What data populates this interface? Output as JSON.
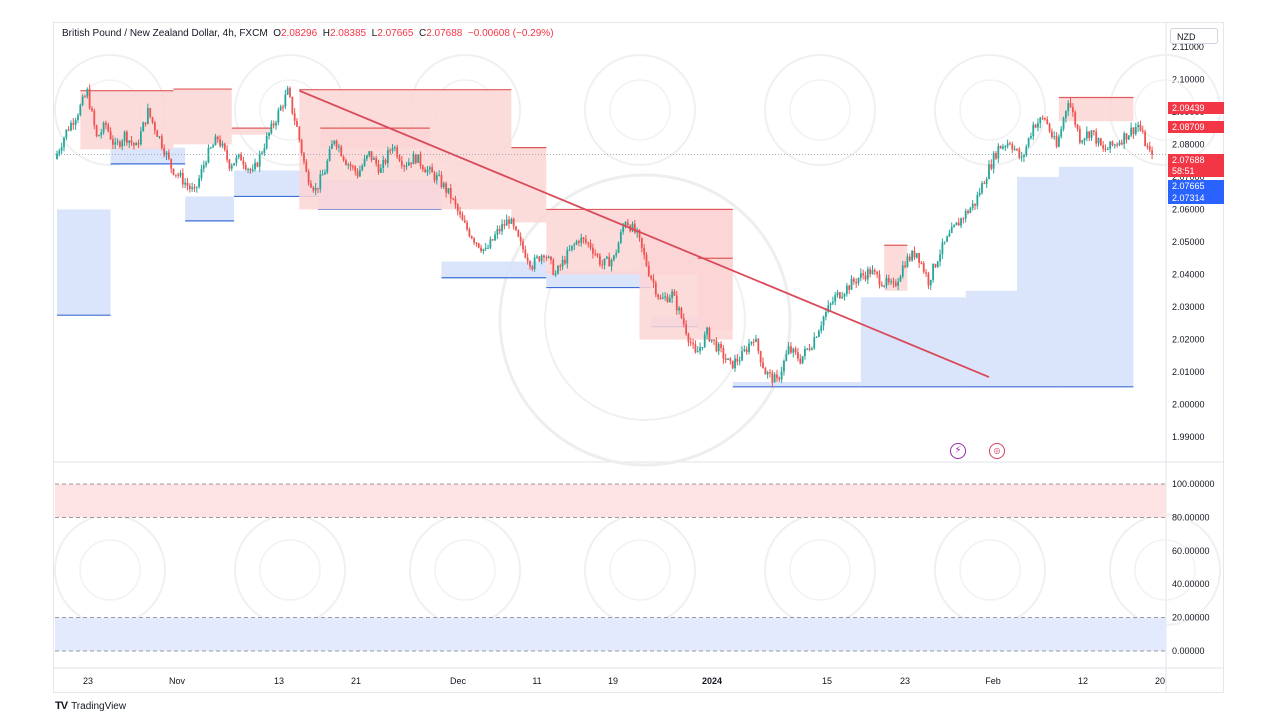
{
  "header": {
    "symbol": "British Pound / New Zealand Dollar, 4h, FXCM",
    "o_label": "O",
    "o_value": "2.08296",
    "h_label": "H",
    "h_value": "2.08385",
    "l_label": "L",
    "l_value": "2.07665",
    "c_label": "C",
    "c_value": "2.07688",
    "change": "−0.00608 (−0.29%)"
  },
  "currency": "NZD",
  "price_tags": [
    {
      "text": "2.09439",
      "color": "#f23645",
      "price": 2.09439
    },
    {
      "text": "2.08709",
      "color": "#f23645",
      "price": 2.08709
    },
    {
      "text": "2.07688",
      "color": "#f23645",
      "price": 2.07688
    },
    {
      "text": "58:51",
      "color": "#f23645",
      "price": 2.0733
    },
    {
      "text": "2.07665",
      "color": "#2962ff",
      "price": 2.07665
    },
    {
      "text": "2.07314",
      "color": "#2962ff",
      "price": 2.07314
    }
  ],
  "colors": {
    "up": "#26a69a",
    "down": "#ef5350",
    "supply_fill": "#fbd5d5",
    "supply_line": "#e05a5a",
    "demand_fill": "#d4e0fb",
    "demand_line": "#3d6fd9",
    "trendline": "#d84a5a",
    "grid": "#f0f3fa",
    "zone_top": "#fde3e3",
    "zone_bottom": "#e3eafd"
  },
  "footer": {
    "brand": "TradingView"
  },
  "chart_data": [
    {
      "type": "candlestick",
      "title": "British Pound / New Zealand Dollar, 4h, FXCM",
      "ylim": [
        1.983,
        2.113
      ],
      "y_ticks": [
        "2.11000",
        "2.10000",
        "2.09000",
        "2.08000",
        "2.07000",
        "2.06000",
        "2.05000",
        "2.04000",
        "2.03000",
        "2.02000",
        "2.01000",
        "2.00000",
        "1.99000"
      ],
      "x_ticks": [
        "23",
        "Nov",
        "13",
        "21",
        "Dec",
        "11",
        "19",
        "2024",
        "15",
        "23",
        "Feb",
        "12",
        "20"
      ],
      "price_path": [
        [
          0,
          2.0755
        ],
        [
          5,
          2.084
        ],
        [
          10,
          2.09
        ],
        [
          14,
          2.096
        ],
        [
          18,
          2.082
        ],
        [
          22,
          2.086
        ],
        [
          26,
          2.079
        ],
        [
          30,
          2.083
        ],
        [
          35,
          2.079
        ],
        [
          40,
          2.09
        ],
        [
          45,
          2.082
        ],
        [
          50,
          2.073
        ],
        [
          55,
          2.069
        ],
        [
          60,
          2.065
        ],
        [
          65,
          2.076
        ],
        [
          70,
          2.082
        ],
        [
          75,
          2.074
        ],
        [
          80,
          2.076
        ],
        [
          85,
          2.071
        ],
        [
          90,
          2.08
        ],
        [
          95,
          2.088
        ],
        [
          100,
          2.096
        ],
        [
          104,
          2.085
        ],
        [
          108,
          2.071
        ],
        [
          112,
          2.066
        ],
        [
          116,
          2.072
        ],
        [
          120,
          2.082
        ],
        [
          125,
          2.075
        ],
        [
          130,
          2.071
        ],
        [
          135,
          2.077
        ],
        [
          140,
          2.072
        ],
        [
          145,
          2.08
        ],
        [
          150,
          2.074
        ],
        [
          155,
          2.076
        ],
        [
          160,
          2.072
        ],
        [
          165,
          2.069
        ],
        [
          170,
          2.064
        ],
        [
          175,
          2.056
        ],
        [
          180,
          2.051
        ],
        [
          185,
          2.047
        ],
        [
          190,
          2.053
        ],
        [
          195,
          2.057
        ],
        [
          200,
          2.049
        ],
        [
          205,
          2.043
        ],
        [
          210,
          2.047
        ],
        [
          215,
          2.04
        ],
        [
          220,
          2.046
        ],
        [
          225,
          2.051
        ],
        [
          230,
          2.049
        ],
        [
          235,
          2.043
        ],
        [
          240,
          2.045
        ],
        [
          245,
          2.057
        ],
        [
          250,
          2.052
        ],
        [
          255,
          2.041
        ],
        [
          260,
          2.032
        ],
        [
          265,
          2.034
        ],
        [
          270,
          2.025
        ],
        [
          275,
          2.015
        ],
        [
          280,
          2.022
        ],
        [
          285,
          2.017
        ],
        [
          290,
          2.012
        ],
        [
          295,
          2.015
        ],
        [
          300,
          2.021
        ],
        [
          305,
          2.01
        ],
        [
          310,
          2.007
        ],
        [
          315,
          2.017
        ],
        [
          320,
          2.014
        ],
        [
          325,
          2.019
        ],
        [
          330,
          2.027
        ],
        [
          335,
          2.033
        ],
        [
          340,
          2.036
        ],
        [
          345,
          2.039
        ],
        [
          350,
          2.041
        ],
        [
          355,
          2.038
        ],
        [
          360,
          2.036
        ],
        [
          365,
          2.044
        ],
        [
          370,
          2.047
        ],
        [
          375,
          2.038
        ],
        [
          380,
          2.047
        ],
        [
          385,
          2.053
        ],
        [
          390,
          2.058
        ],
        [
          395,
          2.062
        ],
        [
          400,
          2.071
        ],
        [
          405,
          2.079
        ],
        [
          410,
          2.081
        ],
        [
          415,
          2.075
        ],
        [
          420,
          2.086
        ],
        [
          425,
          2.088
        ],
        [
          430,
          2.079
        ],
        [
          435,
          2.094
        ],
        [
          440,
          2.082
        ],
        [
          445,
          2.084
        ],
        [
          450,
          2.078
        ],
        [
          455,
          2.08
        ],
        [
          460,
          2.083
        ],
        [
          465,
          2.086
        ],
        [
          470,
          2.0769
        ]
      ],
      "trendline": {
        "from": [
          104,
          2.0965
        ],
        "to": [
          400,
          2.0085
        ]
      },
      "supply_zones": [
        {
          "x0": 10,
          "x1": 50,
          "low": 2.0785,
          "high": 2.0965
        },
        {
          "x0": 50,
          "x1": 75,
          "low": 2.08,
          "high": 2.097
        },
        {
          "x0": 75,
          "x1": 92,
          "low": 2.083,
          "high": 2.085
        },
        {
          "x0": 104,
          "x1": 195,
          "low": 2.06,
          "high": 2.0968
        },
        {
          "x0": 113,
          "x1": 160,
          "low": 2.079,
          "high": 2.085
        },
        {
          "x0": 195,
          "x1": 210,
          "low": 2.056,
          "high": 2.079
        },
        {
          "x0": 210,
          "x1": 290,
          "low": 2.04,
          "high": 2.06
        },
        {
          "x0": 250,
          "x1": 290,
          "low": 2.02,
          "high": 2.06
        },
        {
          "x0": 275,
          "x1": 290,
          "low": 2.023,
          "high": 2.045
        },
        {
          "x0": 355,
          "x1": 365,
          "low": 2.035,
          "high": 2.049
        },
        {
          "x0": 430,
          "x1": 462,
          "low": 2.0871,
          "high": 2.0944
        }
      ],
      "demand_zones": [
        {
          "x0": 0,
          "x1": 23,
          "low": 2.0275,
          "high": 2.06
        },
        {
          "x0": 23,
          "x1": 55,
          "low": 2.074,
          "high": 2.079
        },
        {
          "x0": 55,
          "x1": 76,
          "low": 2.0565,
          "high": 2.064
        },
        {
          "x0": 76,
          "x1": 112,
          "low": 2.064,
          "high": 2.072
        },
        {
          "x0": 112,
          "x1": 165,
          "low": 2.06,
          "high": 2.069
        },
        {
          "x0": 165,
          "x1": 210,
          "low": 2.039,
          "high": 2.044
        },
        {
          "x0": 210,
          "x1": 255,
          "low": 2.036,
          "high": 2.041
        },
        {
          "x0": 255,
          "x1": 275,
          "low": 2.024,
          "high": 2.027
        },
        {
          "x0": 290,
          "x1": 345,
          "low": 2.0055,
          "high": 2.007
        },
        {
          "x0": 345,
          "x1": 390,
          "low": 2.0055,
          "high": 2.033
        },
        {
          "x0": 390,
          "x1": 412,
          "low": 2.0055,
          "high": 2.035
        },
        {
          "x0": 412,
          "x1": 430,
          "low": 2.0055,
          "high": 2.07
        },
        {
          "x0": 430,
          "x1": 462,
          "low": 2.0055,
          "high": 2.0731
        }
      ]
    },
    {
      "type": "line",
      "title": "",
      "ylim": [
        0,
        100
      ],
      "y_ticks": [
        "100.00000",
        "80.00000",
        "60.00000",
        "40.00000",
        "20.00000",
        "0.00000"
      ],
      "bands": [
        {
          "low": 80,
          "high": 100,
          "kind": "overbought"
        },
        {
          "low": 0,
          "high": 20,
          "kind": "oversold"
        }
      ],
      "series": []
    }
  ]
}
